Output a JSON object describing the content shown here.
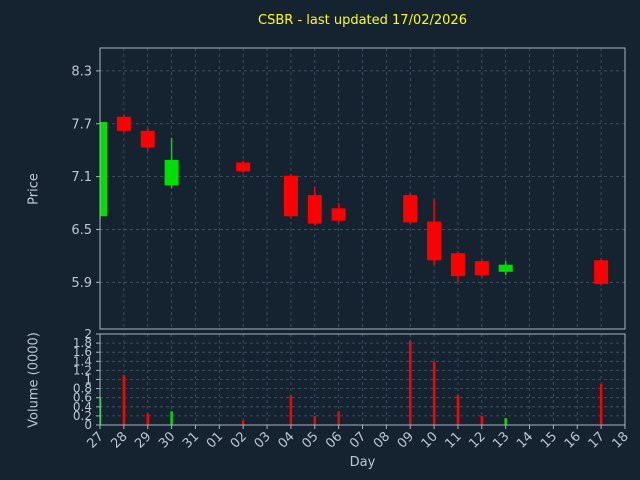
{
  "chart_data": {
    "type": "candlestick",
    "title": "CSBR - last updated 17/02/2026",
    "xlabel": "Day",
    "price_ylabel": "Price",
    "volume_ylabel": "Volume (0000)",
    "x_labels": [
      "27",
      "28",
      "29",
      "30",
      "31",
      "01",
      "02",
      "03",
      "04",
      "05",
      "06",
      "07",
      "08",
      "09",
      "10",
      "11",
      "12",
      "13",
      "14",
      "15",
      "16",
      "17",
      "18"
    ],
    "price_range": [
      5.37,
      8.56
    ],
    "volume_range": [
      0,
      2
    ],
    "grid": true,
    "legend": "none",
    "price_ticks": [
      {
        "label": "8.3",
        "value": 8.3
      },
      {
        "label": "7.7",
        "value": 7.7
      },
      {
        "label": "7.1",
        "value": 7.1
      },
      {
        "label": "6.5",
        "value": 6.5
      },
      {
        "label": "5.9",
        "value": 5.9
      }
    ],
    "volume_ticks": [
      {
        "label": "2",
        "value": 2
      },
      {
        "label": "1.8",
        "value": 1.8
      },
      {
        "label": "1.6",
        "value": 1.6
      },
      {
        "label": "1.4",
        "value": 1.4
      },
      {
        "label": "1.2",
        "value": 1.2
      },
      {
        "label": "1",
        "value": 1
      },
      {
        "label": "0.8",
        "value": 0.8
      },
      {
        "label": "0.6",
        "value": 0.6
      },
      {
        "label": "0.4",
        "value": 0.4
      },
      {
        "label": "0.2",
        "value": 0.2
      },
      {
        "label": "0",
        "value": 0
      }
    ],
    "candles": [
      {
        "day": "27",
        "open": 6.65,
        "high": 7.72,
        "low": 6.62,
        "close": 7.72,
        "volume": 0.6
      },
      {
        "day": "28",
        "open": 7.78,
        "high": 7.8,
        "low": 7.6,
        "close": 7.62,
        "volume": 1.1
      },
      {
        "day": "29",
        "open": 7.62,
        "high": 7.65,
        "low": 7.4,
        "close": 7.43,
        "volume": 0.25
      },
      {
        "day": "30",
        "open": 7.0,
        "high": 7.54,
        "low": 6.97,
        "close": 7.29,
        "volume": 0.3
      },
      {
        "day": "02",
        "open": 7.26,
        "high": 7.28,
        "low": 7.14,
        "close": 7.16,
        "volume": 0.1
      },
      {
        "day": "04",
        "open": 7.11,
        "high": 7.13,
        "low": 6.63,
        "close": 6.65,
        "volume": 0.65
      },
      {
        "day": "05",
        "open": 6.89,
        "high": 6.98,
        "low": 6.55,
        "close": 6.57,
        "volume": 0.2
      },
      {
        "day": "06",
        "open": 6.74,
        "high": 6.8,
        "low": 6.58,
        "close": 6.6,
        "volume": 0.3
      },
      {
        "day": "09",
        "open": 6.89,
        "high": 6.91,
        "low": 6.56,
        "close": 6.58,
        "volume": 1.85
      },
      {
        "day": "10",
        "open": 6.59,
        "high": 6.85,
        "low": 6.1,
        "close": 6.15,
        "volume": 1.4
      },
      {
        "day": "11",
        "open": 6.23,
        "high": 6.25,
        "low": 5.9,
        "close": 5.97,
        "volume": 0.65
      },
      {
        "day": "12",
        "open": 6.14,
        "high": 6.16,
        "low": 5.96,
        "close": 5.98,
        "volume": 0.2
      },
      {
        "day": "13",
        "open": 6.02,
        "high": 6.14,
        "low": 5.98,
        "close": 6.1,
        "volume": 0.15
      },
      {
        "day": "17",
        "open": 6.15,
        "high": 6.17,
        "low": 5.86,
        "close": 5.88,
        "volume": 0.9
      }
    ],
    "colors": {
      "background": "#15222f",
      "grid": "#46586a",
      "spine": "#a7b4c0",
      "tick_text": "#bcc6d2",
      "title": "#ffff00",
      "up": "#00e000",
      "down": "#ff0000"
    }
  }
}
